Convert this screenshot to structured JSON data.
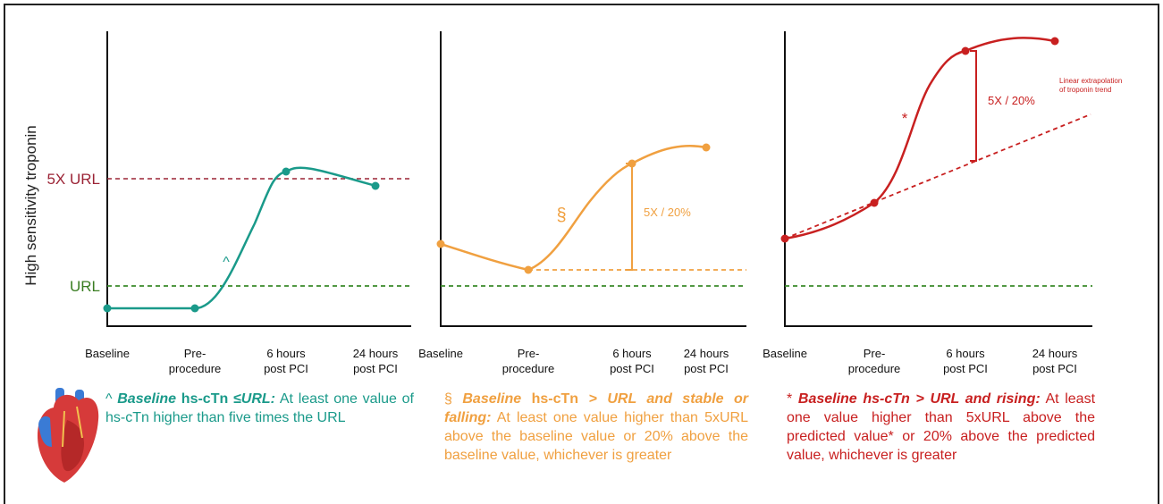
{
  "y_axis_label": "High sensitivity troponin",
  "reference_lines": {
    "five_x_url": "5X URL",
    "url": "URL"
  },
  "panels": [
    {
      "x_labels": [
        [
          "Baseline"
        ],
        [
          "Pre-",
          "procedure"
        ],
        [
          "6 hours",
          "post PCI"
        ],
        [
          "24 hours",
          "post PCI"
        ]
      ],
      "marker": "^",
      "caption": [
        {
          "text": "^ ",
          "style": "normal"
        },
        {
          "text": "Baseline",
          "style": "bold-italic"
        },
        {
          "text": " hs-cTn ",
          "style": "bold"
        },
        {
          "text": "≤URL:",
          "style": "bold-italic"
        },
        {
          "text": " At least one value of hs-cTn higher than five times the URL",
          "style": "normal"
        }
      ]
    },
    {
      "x_labels": [
        [
          "Baseline"
        ],
        [
          "Pre-",
          "procedure"
        ],
        [
          "6 hours",
          "post PCI"
        ],
        [
          "24 hours",
          "post PCI"
        ]
      ],
      "marker": "§",
      "bracket_label": "5X / 20%",
      "caption": [
        {
          "text": "§ ",
          "style": "normal"
        },
        {
          "text": "Baseline",
          "style": "bold-italic"
        },
        {
          "text": " hs-cTn ",
          "style": "bold"
        },
        {
          "text": "> URL and stable or falling:",
          "style": "bold-italic"
        },
        {
          "text": " At least one value higher than 5xURL above the baseline value or 20% above the baseline value, whichever is greater",
          "style": "normal"
        }
      ]
    },
    {
      "x_labels": [
        [
          "Baseline"
        ],
        [
          "Pre-",
          "procedure"
        ],
        [
          "6 hours",
          "post PCI"
        ],
        [
          "24 hours",
          "post PCI"
        ]
      ],
      "marker": "*",
      "bracket_label": "5X / 20%",
      "annotation": [
        "Linear extrapolation",
        "of troponin trend"
      ],
      "caption": [
        {
          "text": "* ",
          "style": "normal"
        },
        {
          "text": "Baseline hs-cTn > URL and rising:",
          "style": "bold-italic"
        },
        {
          "text": " At least one value higher than 5xURL above the predicted value* or 20% above the predicted value, whichever is greater",
          "style": "normal"
        }
      ]
    }
  ]
}
